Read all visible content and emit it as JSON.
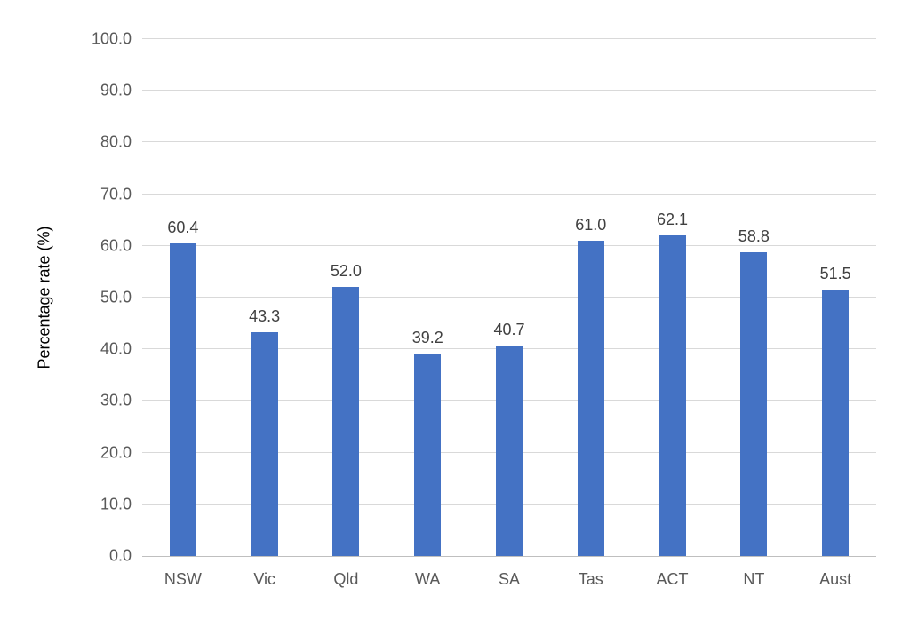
{
  "chart_data": {
    "type": "bar",
    "categories": [
      "NSW",
      "Vic",
      "Qld",
      "WA",
      "SA",
      "Tas",
      "ACT",
      "NT",
      "Aust"
    ],
    "values": [
      60.4,
      43.3,
      52.0,
      39.2,
      40.7,
      61.0,
      62.1,
      58.8,
      51.5
    ],
    "data_labels": [
      "60.4",
      "43.3",
      "52.0",
      "39.2",
      "40.7",
      "61.0",
      "62.1",
      "58.8",
      "51.5"
    ],
    "ylabel": "Percentage rate (%)",
    "ylim": [
      0,
      100
    ],
    "ytick_step": 10,
    "ytick_labels": [
      "0.0",
      "10.0",
      "20.0",
      "30.0",
      "40.0",
      "50.0",
      "60.0",
      "70.0",
      "80.0",
      "90.0",
      "100.0"
    ],
    "grid": true,
    "legend": false,
    "colors": {
      "bar": "#4472C4",
      "gridline": "#D9D9D9",
      "axis_line": "#BFBFBF",
      "tick_label": "#595959",
      "data_label": "#404040"
    }
  }
}
